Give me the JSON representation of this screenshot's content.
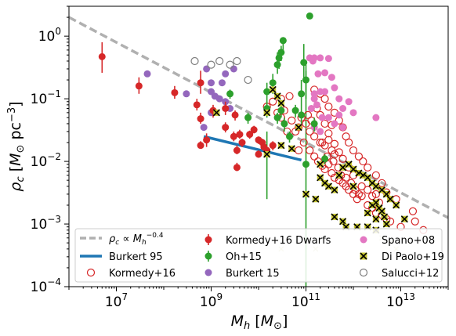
{
  "chart_data": {
    "type": "scatter",
    "xscale": "log",
    "yscale": "log",
    "xlim": [
      1000000,
      100000000000000.0
    ],
    "ylim": [
      0.0001,
      3
    ],
    "xlabel_symbol": "M",
    "xlabel_sub": "h",
    "xlabel_unit_open": " [",
    "xlabel_unit_m": "M",
    "xlabel_unit_sub": "⊙",
    "xlabel_unit_close": "]",
    "ylabel_symbol": "ρ",
    "ylabel_sub": "c",
    "ylabel_unit_open": " [",
    "ylabel_unit_m": "M",
    "ylabel_unit_sub": "⊙",
    "ylabel_unit_pc": " pc",
    "ylabel_unit_exp": "−3",
    "ylabel_unit_close": "]",
    "xticks": [
      {
        "value": 10000000.0,
        "base": "10",
        "exp": "7"
      },
      {
        "value": 1000000000.0,
        "base": "10",
        "exp": "9"
      },
      {
        "value": 100000000000.0,
        "base": "10",
        "exp": "11"
      },
      {
        "value": 10000000000000.0,
        "base": "10",
        "exp": "13"
      }
    ],
    "yticks": [
      {
        "value": 1,
        "base": "10",
        "exp": "0"
      },
      {
        "value": 0.1,
        "base": "10",
        "exp": "−1"
      },
      {
        "value": 0.01,
        "base": "10",
        "exp": "−2"
      },
      {
        "value": 0.001,
        "base": "10",
        "exp": "−3"
      },
      {
        "value": 0.0001,
        "base": "10",
        "exp": "−4"
      }
    ],
    "legend": {
      "placement": "lower-center",
      "col1": [
        {
          "key": "powerlaw",
          "label_main": "ρ",
          "label_sub": "c",
          "label_mid": " ∝ M",
          "label_sub2": "h",
          "label_sup": "−0.4"
        },
        {
          "key": "burkert95",
          "label": "Burkert 95"
        },
        {
          "key": "kormedy16",
          "label": "Kormedy+16"
        }
      ],
      "col2": [
        {
          "key": "dwarfs",
          "label": "Kormedy+16 Dwarfs"
        },
        {
          "key": "oh15",
          "label": "Oh+15"
        },
        {
          "key": "burkert15",
          "label": "Burkert 15"
        }
      ],
      "col3": [
        {
          "key": "spano08",
          "label": "Spano+08"
        },
        {
          "key": "dipaolo19",
          "label": "Di Paolo+19"
        },
        {
          "key": "salucci12",
          "label": "Salucci+12"
        }
      ]
    },
    "colors": {
      "powerlaw": "#b0b0b0",
      "burkert95": "#1f77b4",
      "kormedy16": "#d62728",
      "dwarfs": "#d62728",
      "oh15": "#2ca02c",
      "burkert15": "#9467bd",
      "spano08": "#e377c2",
      "dipaolo19_fill": "#c8c832",
      "dipaolo19_edge": "#000000",
      "salucci12": "#7f7f7f"
    },
    "series": {
      "powerlaw": {
        "x": [
          1000000,
          100000000000000.0
        ],
        "y": [
          2.0,
          0.00126
        ]
      },
      "burkert95": {
        "x": [
          700000000.0,
          80000000000.0
        ],
        "y": [
          0.025,
          0.0105
        ]
      },
      "dwarfs": [
        [
          5000000.0,
          0.47,
          0.26,
          0.8
        ],
        [
          30000000.0,
          0.16,
          0.12,
          0.22
        ],
        [
          170000000.0,
          0.125,
          0.1,
          0.16
        ],
        [
          500000000.0,
          0.08,
          0.065,
          0.1
        ],
        [
          600000000.0,
          0.18,
          0.12,
          0.28
        ],
        [
          600000000.0,
          0.048,
          0.04,
          0.06
        ],
        [
          600000000.0,
          0.018,
          0.016,
          0.021
        ],
        [
          800000000.0,
          0.022,
          0.017,
          0.028
        ],
        [
          1100000000.0,
          0.065,
          0.05,
          0.08
        ],
        [
          2000000000.0,
          0.07,
          0.055,
          0.09
        ],
        [
          3200000000.0,
          0.055,
          0.045,
          0.065
        ],
        [
          2000000000.0,
          0.035,
          0.029,
          0.042
        ],
        [
          3000000000.0,
          0.025,
          0.021,
          0.03
        ],
        [
          4000000000.0,
          0.027,
          0.023,
          0.032
        ],
        [
          3500000000.0,
          0.015,
          0.013,
          0.018
        ],
        [
          4500000000.0,
          0.02,
          0.017,
          0.023
        ],
        [
          3500000000.0,
          0.008,
          0.007,
          0.0095
        ],
        [
          6500000000.0,
          0.027,
          0.023,
          0.031
        ],
        [
          8000000000.0,
          0.032,
          0.028,
          0.037
        ],
        [
          10000000000.0,
          0.022,
          0.019,
          0.025
        ],
        [
          12000000000.0,
          0.02,
          0.017,
          0.023
        ],
        [
          15000000000.0,
          0.015,
          0.013,
          0.017
        ],
        [
          20000000000.0,
          0.018,
          0.015,
          0.021
        ],
        [
          10000000000.0,
          0.013,
          0.0115,
          0.015
        ],
        [
          13000000000.0,
          0.017,
          0.015,
          0.019
        ]
      ],
      "oh15": [
        [
          2500000000.0,
          0.12,
          0.1,
          0.14
        ],
        [
          6000000000.0,
          0.05,
          0.04,
          0.06
        ],
        [
          15000000000.0,
          0.13,
          0.07,
          0.18
        ],
        [
          15000000000.0,
          0.07,
          0.05,
          0.09
        ],
        [
          25000000000.0,
          0.35,
          0.25,
          0.55
        ],
        [
          27000000000.0,
          0.45,
          0.3,
          0.6
        ],
        [
          30000000000.0,
          0.55,
          0.4,
          0.7
        ],
        [
          33000000000.0,
          0.85,
          0.6,
          0.95
        ],
        [
          20000000000.0,
          0.18,
          0.12,
          0.25
        ],
        [
          25000000000.0,
          0.05,
          0.04,
          0.06
        ],
        [
          30000000000.0,
          0.065,
          0.05,
          0.08
        ],
        [
          35000000000.0,
          0.04,
          0.03,
          0.05
        ],
        [
          45000000000.0,
          0.025,
          0.02,
          0.03
        ],
        [
          60000000000.0,
          0.065,
          0.05,
          0.08
        ],
        [
          80000000000.0,
          0.055,
          0.04,
          0.07
        ],
        [
          80000000000.0,
          0.12,
          0.07,
          0.2
        ],
        [
          90000000000.0,
          0.38,
          0.2,
          0.75
        ],
        [
          100000000000.0,
          0.2,
          0.1,
          0.28
        ],
        [
          120000000000.0,
          2.1,
          2.0,
          2.2
        ],
        [
          150000000000.0,
          0.04,
          0.03,
          0.05
        ],
        [
          250000000000.0,
          0.011,
          0.009,
          0.013
        ],
        [
          100000000000.0,
          0.009,
          0.0,
          0.0
        ]
      ],
      "oh15_lines": [
        [
          100000000000.0,
          0.35,
          1e-06
        ],
        [
          15000000000.0,
          0.0025,
          0.03
        ]
      ],
      "burkert15": [
        [
          45000000.0,
          0.25
        ],
        [
          300000000.0,
          0.12
        ],
        [
          800000000.0,
          0.3
        ],
        [
          1000000000.0,
          0.18
        ],
        [
          1000000000.0,
          0.13
        ],
        [
          1700000000.0,
          0.18
        ],
        [
          2000000000.0,
          0.25
        ],
        [
          3000000000.0,
          0.3
        ],
        [
          1000000000.0,
          0.06
        ],
        [
          700000000.0,
          0.035
        ],
        [
          1500000000.0,
          0.1
        ],
        [
          2000000000.0,
          0.09
        ],
        [
          2500000000.0,
          0.07
        ],
        [
          1200000000.0,
          0.11
        ]
      ],
      "spano08": [
        [
          120000000000.0,
          0.45
        ],
        [
          150000000000.0,
          0.45
        ],
        [
          200000000000.0,
          0.45
        ],
        [
          300000000000.0,
          0.44
        ],
        [
          140000000000.0,
          0.4
        ],
        [
          180000000000.0,
          0.25
        ],
        [
          250000000000.0,
          0.26
        ],
        [
          350000000000.0,
          0.22
        ],
        [
          150000000000.0,
          0.12
        ],
        [
          200000000000.0,
          0.13
        ],
        [
          250000000000.0,
          0.13
        ],
        [
          400000000000.0,
          0.15
        ],
        [
          500000000000.0,
          0.1
        ],
        [
          600000000000.0,
          0.07
        ],
        [
          130000000000.0,
          0.07
        ],
        [
          170000000000.0,
          0.08
        ],
        [
          220000000000.0,
          0.05
        ],
        [
          300000000000.0,
          0.05
        ],
        [
          400000000000.0,
          0.04
        ],
        [
          500000000000.0,
          0.055
        ],
        [
          1000000000000.0,
          0.06
        ],
        [
          3000000000000.0,
          0.05
        ],
        [
          150000000000.0,
          0.035
        ],
        [
          200000000000.0,
          0.03
        ],
        [
          600000000000.0,
          0.035
        ],
        [
          150000000000.0,
          0.1
        ],
        [
          800000000000.0,
          0.09
        ]
      ],
      "kormedy16": [
        [
          15000000000.0,
          0.075
        ],
        [
          20000000000.0,
          0.09
        ],
        [
          25000000000.0,
          0.06
        ],
        [
          30000000000.0,
          0.05
        ],
        [
          35000000000.0,
          0.065
        ],
        [
          40000000000.0,
          0.03
        ],
        [
          50000000000.0,
          0.045
        ],
        [
          60000000000.0,
          0.03
        ],
        [
          70000000000.0,
          0.035
        ],
        [
          80000000000.0,
          0.05
        ],
        [
          100000000000.0,
          0.04
        ],
        [
          120000000000.0,
          0.03
        ],
        [
          150000000000.0,
          0.025
        ],
        [
          200000000000.0,
          0.02
        ],
        [
          250000000000.0,
          0.018
        ],
        [
          300000000000.0,
          0.022
        ],
        [
          350000000000.0,
          0.015
        ],
        [
          400000000000.0,
          0.013
        ],
        [
          120000000000.0,
          0.015
        ],
        [
          150000000000.0,
          0.012
        ],
        [
          180000000000.0,
          0.01
        ],
        [
          220000000000.0,
          0.0085
        ],
        [
          250000000000.0,
          0.0075
        ],
        [
          300000000000.0,
          0.009
        ],
        [
          350000000000.0,
          0.0065
        ],
        [
          400000000000.0,
          0.0055
        ],
        [
          500000000000.0,
          0.005
        ],
        [
          600000000000.0,
          0.0045
        ],
        [
          700000000000.0,
          0.004
        ],
        [
          800000000000.0,
          0.0035
        ],
        [
          1000000000000.0,
          0.003
        ],
        [
          1200000000000.0,
          0.0025
        ],
        [
          1500000000000.0,
          0.0028
        ],
        [
          2000000000000.0,
          0.002
        ],
        [
          2500000000000.0,
          0.0018
        ],
        [
          3000000000000.0,
          0.0015
        ],
        [
          4000000000000.0,
          0.0014
        ],
        [
          5000000000000.0,
          0.0012
        ],
        [
          6000000000000.0,
          0.0011
        ],
        [
          10000000000000.0,
          0.0009
        ],
        [
          20000000000000.0,
          0.0011
        ],
        [
          30000000000000.0,
          0.0008
        ],
        [
          1500000000000.0,
          0.004
        ],
        [
          2000000000000.0,
          0.0035
        ],
        [
          3000000000000.0,
          0.003
        ],
        [
          1000000000000.0,
          0.006
        ],
        [
          800000000000.0,
          0.008
        ],
        [
          600000000000.0,
          0.011
        ],
        [
          500000000000.0,
          0.014
        ],
        [
          400000000000.0,
          0.019
        ],
        [
          300000000000.0,
          0.028
        ],
        [
          250000000000.0,
          0.04
        ],
        [
          200000000000.0,
          0.055
        ],
        [
          170000000000.0,
          0.07
        ],
        [
          300000000000.0,
          0.075
        ],
        [
          400000000000.0,
          0.06
        ],
        [
          500000000000.0,
          0.045
        ],
        [
          600000000000.0,
          0.035
        ],
        [
          700000000000.0,
          0.025
        ],
        [
          800000000000.0,
          0.02
        ],
        [
          1000000000000.0,
          0.015
        ],
        [
          1300000000000.0,
          0.012
        ],
        [
          1600000000000.0,
          0.01
        ],
        [
          2000000000000.0,
          0.008
        ],
        [
          3000000000000.0,
          0.006
        ],
        [
          4000000000000.0,
          0.0045
        ],
        [
          150000000000.0,
          0.14
        ],
        [
          200000000000.0,
          0.12
        ],
        [
          250000000000.0,
          0.1
        ],
        [
          130000000000.0,
          0.045
        ],
        [
          90000000000.0,
          0.02
        ],
        [
          70000000000.0,
          0.015
        ],
        [
          110000000000.0,
          0.055
        ],
        [
          30000000000.0,
          0.1
        ],
        [
          45000000000.0,
          0.11
        ],
        [
          220000000000.0,
          0.02
        ],
        [
          280000000000.0,
          0.012
        ],
        [
          380000000000.0,
          0.01
        ],
        [
          480000000000.0,
          0.008
        ],
        [
          550000000000.0,
          0.006
        ],
        [
          700000000000.0,
          0.0055
        ],
        [
          900000000000.0,
          0.0045
        ],
        [
          1100000000000.0,
          0.0035
        ],
        [
          1300000000000.0,
          0.003
        ],
        [
          2500000000000.0,
          0.0028
        ],
        [
          3500000000000.0,
          0.0022
        ],
        [
          18000000000000.0,
          0.0016
        ],
        [
          8000000000000.0,
          0.0025
        ],
        [
          5000000000000.0,
          0.0032
        ],
        [
          350000000000.0,
          0.038
        ]
      ],
      "dipaolo19": [
        [
          100000000000.0,
          0.003
        ],
        [
          160000000000.0,
          0.0025
        ],
        [
          200000000000.0,
          0.0055
        ],
        [
          250000000000.0,
          0.0045
        ],
        [
          300000000000.0,
          0.004
        ],
        [
          400000000000.0,
          0.0035
        ],
        [
          500000000000.0,
          0.006
        ],
        [
          600000000000.0,
          0.008
        ],
        [
          800000000000.0,
          0.009
        ],
        [
          1000000000000.0,
          0.0075
        ],
        [
          1300000000000.0,
          0.0065
        ],
        [
          1600000000000.0,
          0.006
        ],
        [
          2000000000000.0,
          0.0055
        ],
        [
          2500000000000.0,
          0.0045
        ],
        [
          3000000000000.0,
          0.004
        ],
        [
          4000000000000.0,
          0.0035
        ],
        [
          5000000000000.0,
          0.003
        ],
        [
          6000000000000.0,
          0.0025
        ],
        [
          8000000000000.0,
          0.002
        ],
        [
          12000000000000.0,
          0.0012
        ],
        [
          2000000000000.0,
          0.0015
        ],
        [
          2500000000000.0,
          0.002
        ],
        [
          3000000000000.0,
          0.0022
        ],
        [
          3500000000000.0,
          0.0018
        ],
        [
          4000000000000.0,
          0.0016
        ],
        [
          4500000000000.0,
          0.0013
        ],
        [
          5000000000000.0,
          0.001
        ],
        [
          3000000000000.0,
          0.0012
        ],
        [
          2000000000000.0,
          0.0009
        ],
        [
          600000000000.0,
          0.0011
        ],
        [
          400000000000.0,
          0.0013
        ],
        [
          700000000000.0,
          0.0009
        ],
        [
          1200000000000.0,
          0.0009
        ],
        [
          3000000000000.0,
          0.0008
        ],
        [
          20000000000.0,
          0.14
        ],
        [
          25000000000.0,
          0.11
        ],
        [
          30000000000.0,
          0.085
        ],
        [
          1300000000.0,
          0.06
        ],
        [
          15000000000.0,
          0.06
        ],
        [
          15000000000.0,
          0.013
        ],
        [
          30000000000.0,
          0.018
        ],
        [
          50000000000.0,
          0.016
        ],
        [
          70000000000.0,
          0.035
        ],
        [
          200000000000.0,
          0.009
        ],
        [
          1000000000000.0,
          0.004
        ]
      ],
      "salucci12": [
        [
          450000000.0,
          0.4
        ],
        [
          1000000000.0,
          0.35
        ],
        [
          1500000000.0,
          0.4
        ],
        [
          2500000000.0,
          0.35
        ],
        [
          3500000000.0,
          0.4
        ],
        [
          6000000000.0,
          0.2
        ]
      ],
      "faint_x": [
        [
          30000000000.0,
          0.0004
        ],
        [
          160000000000.0,
          0.0004
        ],
        [
          4000000000000.0,
          0.0006
        ],
        [
          8000000000000.0,
          0.0004
        ],
        [
          6000000000000.0,
          0.0005
        ]
      ]
    }
  }
}
